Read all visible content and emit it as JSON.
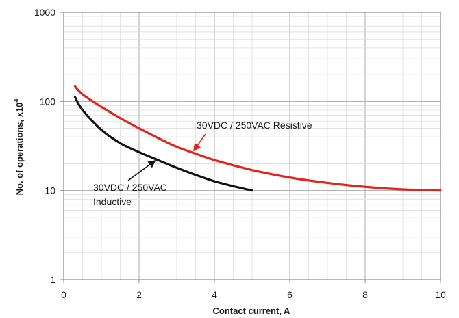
{
  "chart_data": {
    "type": "line",
    "title": "",
    "xlabel": "Contact current, A",
    "ylabel": "No. of operations, x10",
    "ylabel_superscript": "4",
    "xlim": [
      0,
      10
    ],
    "ylim": [
      1,
      1000
    ],
    "yscale": "log",
    "grid": true,
    "x_ticks": [
      "0",
      "2",
      "4",
      "6",
      "8",
      "10"
    ],
    "y_ticks": [
      "1",
      "10",
      "100",
      "1000"
    ],
    "series": [
      {
        "name": "30VDC / 250VAC Resistive",
        "color": "#e3231c",
        "x": [
          0.3,
          0.5,
          1.0,
          1.5,
          2.0,
          2.5,
          3.0,
          3.5,
          4.0,
          5.0,
          6.0,
          7.0,
          8.0,
          9.0,
          10.0
        ],
        "y": [
          148,
          120,
          87,
          65,
          50,
          39,
          31,
          26,
          22,
          17,
          14,
          12.2,
          11,
          10.3,
          10
        ]
      },
      {
        "name": "30VDC / 250VAC Inductive",
        "color": "#111111",
        "x": [
          0.3,
          0.5,
          1.0,
          1.5,
          2.0,
          2.5,
          3.0,
          3.5,
          4.0,
          4.5,
          5.0
        ],
        "y": [
          112,
          80,
          48,
          34,
          27,
          22,
          18,
          15,
          12.7,
          11.2,
          10
        ]
      }
    ],
    "annotations": [
      {
        "label_lines": [
          "30VDC / 250VAC Resistive"
        ],
        "series": "30VDC / 250VAC Resistive",
        "arrow_to": [
          3.45,
          27
        ]
      },
      {
        "label_lines": [
          "30VDC / 250VAC",
          "Inductive"
        ],
        "series": "30VDC / 250VAC Inductive",
        "arrow_to": [
          2.45,
          22.5
        ]
      }
    ]
  }
}
